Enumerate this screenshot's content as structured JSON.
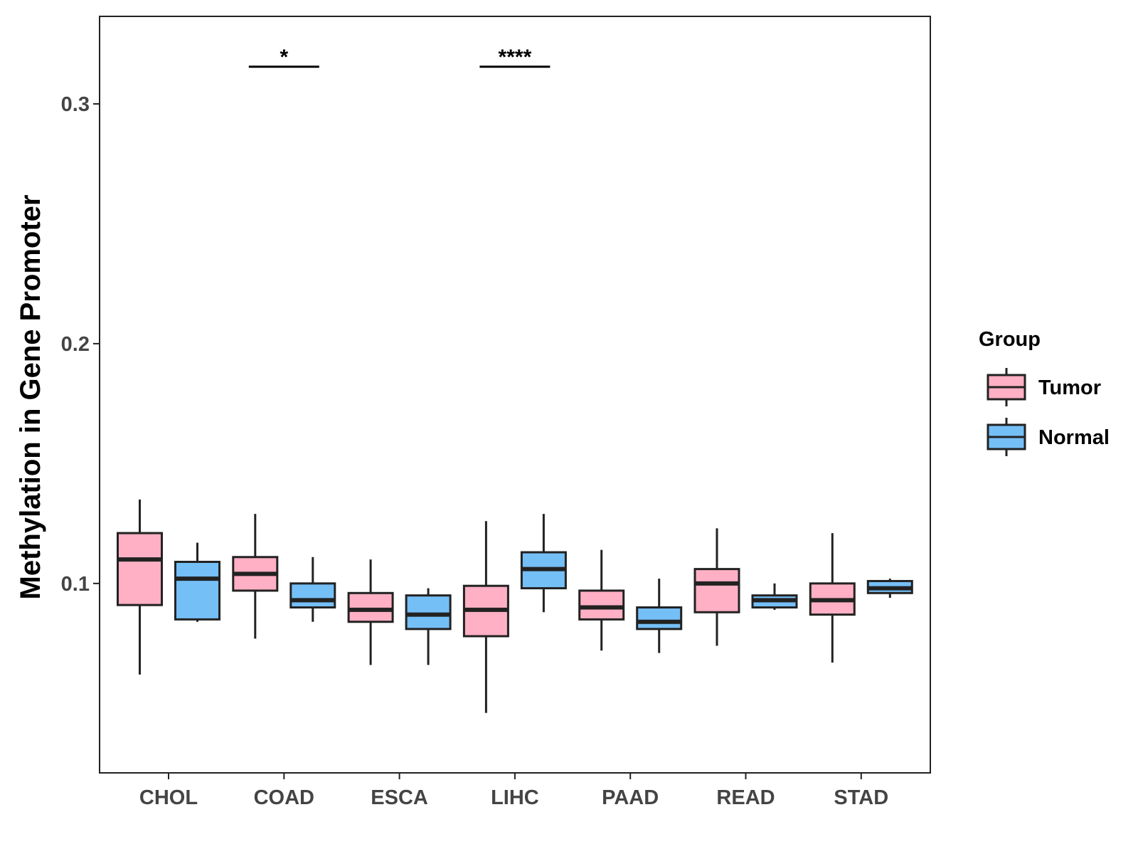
{
  "chart_data": {
    "type": "boxplot",
    "title": "",
    "xlabel": "",
    "ylabel": "Methylation in Gene Promoter",
    "ylim": [
      0.021,
      0.3365
    ],
    "yticks": [
      0.1,
      0.2,
      0.3
    ],
    "ytick_labels": [
      "0.1",
      "0.2",
      "0.3"
    ],
    "grid": false,
    "legend_position": "right",
    "legend_title": "Group",
    "categories": [
      "CHOL",
      "COAD",
      "ESCA",
      "LIHC",
      "PAAD",
      "READ",
      "STAD"
    ],
    "series": [
      {
        "name": "Tumor",
        "color": "#FFB0C4",
        "boxes": [
          {
            "whisker_low": 0.062,
            "q1": 0.091,
            "median": 0.11,
            "q3": 0.121,
            "whisker_high": 0.135
          },
          {
            "whisker_low": 0.077,
            "q1": 0.097,
            "median": 0.104,
            "q3": 0.111,
            "whisker_high": 0.129
          },
          {
            "whisker_low": 0.066,
            "q1": 0.084,
            "median": 0.089,
            "q3": 0.096,
            "whisker_high": 0.11
          },
          {
            "whisker_low": 0.046,
            "q1": 0.078,
            "median": 0.089,
            "q3": 0.099,
            "whisker_high": 0.126
          },
          {
            "whisker_low": 0.072,
            "q1": 0.085,
            "median": 0.09,
            "q3": 0.097,
            "whisker_high": 0.114
          },
          {
            "whisker_low": 0.074,
            "q1": 0.088,
            "median": 0.1,
            "q3": 0.106,
            "whisker_high": 0.123
          },
          {
            "whisker_low": 0.067,
            "q1": 0.087,
            "median": 0.093,
            "q3": 0.1,
            "whisker_high": 0.121
          }
        ]
      },
      {
        "name": "Normal",
        "color": "#75BFF7",
        "boxes": [
          {
            "whisker_low": 0.084,
            "q1": 0.085,
            "median": 0.102,
            "q3": 0.109,
            "whisker_high": 0.117
          },
          {
            "whisker_low": 0.084,
            "q1": 0.09,
            "median": 0.093,
            "q3": 0.1,
            "whisker_high": 0.111
          },
          {
            "whisker_low": 0.066,
            "q1": 0.081,
            "median": 0.087,
            "q3": 0.095,
            "whisker_high": 0.098
          },
          {
            "whisker_low": 0.088,
            "q1": 0.098,
            "median": 0.106,
            "q3": 0.113,
            "whisker_high": 0.129
          },
          {
            "whisker_low": 0.071,
            "q1": 0.081,
            "median": 0.084,
            "q3": 0.09,
            "whisker_high": 0.102
          },
          {
            "whisker_low": 0.089,
            "q1": 0.09,
            "median": 0.093,
            "q3": 0.095,
            "whisker_high": 0.1
          },
          {
            "whisker_low": 0.094,
            "q1": 0.096,
            "median": 0.098,
            "q3": 0.101,
            "whisker_high": 0.102
          }
        ]
      }
    ],
    "annotations": [
      {
        "category": "COAD",
        "label": "*",
        "y": 0.3155
      },
      {
        "category": "LIHC",
        "label": "****",
        "y": 0.3155
      }
    ]
  }
}
